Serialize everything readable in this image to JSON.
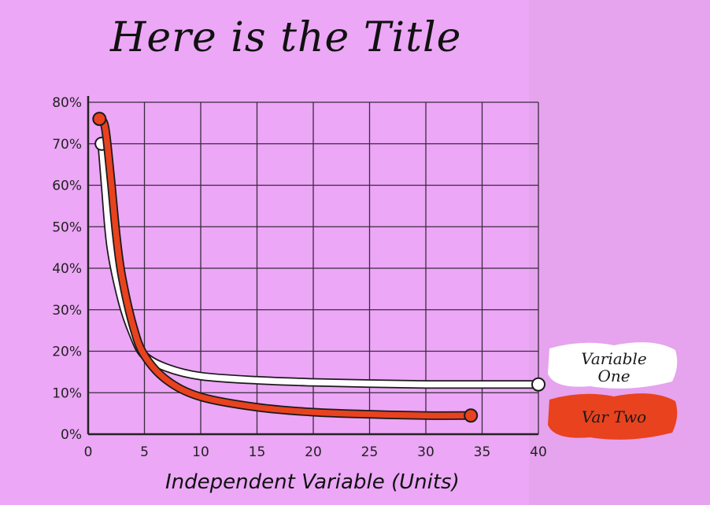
{
  "chart_data": {
    "type": "line",
    "title": "Here is the Title",
    "xlabel": "Independent Variable (Units)",
    "ylabel": "",
    "xlim": [
      0,
      40
    ],
    "ylim": [
      0,
      80
    ],
    "xticks": [
      "0",
      "5",
      "10",
      "15",
      "20",
      "25",
      "30",
      "35",
      "40"
    ],
    "yticks": [
      "0%",
      "10%",
      "20%",
      "30%",
      "40%",
      "50%",
      "60%",
      "70%",
      "80%"
    ],
    "grid": true,
    "legend": "right",
    "series": [
      {
        "name": "Variable One",
        "color": "#ffffff",
        "x": [
          1.2,
          1.5,
          2,
          3,
          4,
          5,
          7,
          10,
          15,
          20,
          25,
          30,
          35,
          40
        ],
        "y": [
          70,
          60,
          45,
          32,
          24,
          19,
          16,
          14,
          13,
          12.5,
          12.2,
          12,
          12,
          12
        ]
      },
      {
        "name": "Var Two",
        "color": "#e8421f",
        "x": [
          1,
          1.5,
          2,
          2.5,
          3,
          4,
          5,
          7,
          10,
          15,
          20,
          25,
          30,
          34
        ],
        "y": [
          76,
          74,
          62,
          48,
          38,
          26,
          19,
          13,
          9,
          6.5,
          5.3,
          4.8,
          4.5,
          4.5
        ]
      }
    ]
  }
}
